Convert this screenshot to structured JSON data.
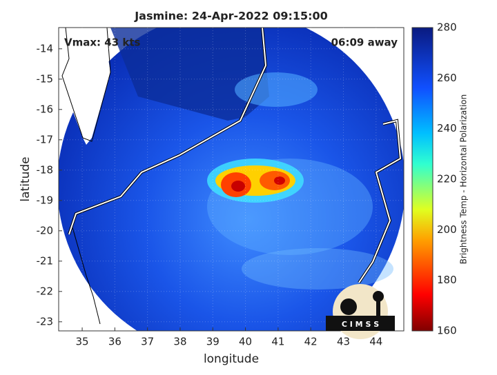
{
  "map": {
    "title": "Jasmine: 24-Apr-2022 09:15:00",
    "annotation_left": "Vmax: 43 kts",
    "annotation_right": "06:09 away",
    "xlabel": "longitude",
    "ylabel": "latitude",
    "xlim": [
      34.28,
      44.85
    ],
    "ylim": [
      -23.3,
      -13.3
    ],
    "xticks": [
      35,
      36,
      37,
      38,
      39,
      40,
      41,
      42,
      43,
      44
    ],
    "yticks": [
      -14,
      -15,
      -16,
      -17,
      -18,
      -19,
      -20,
      -21,
      -22,
      -23
    ],
    "colorbar": {
      "label": "Brightness Temp - Horizontal Polarization",
      "lim": [
        160,
        280
      ],
      "ticks": [
        160,
        180,
        200,
        220,
        240,
        260,
        280
      ]
    },
    "logo": "C I M S S"
  }
}
